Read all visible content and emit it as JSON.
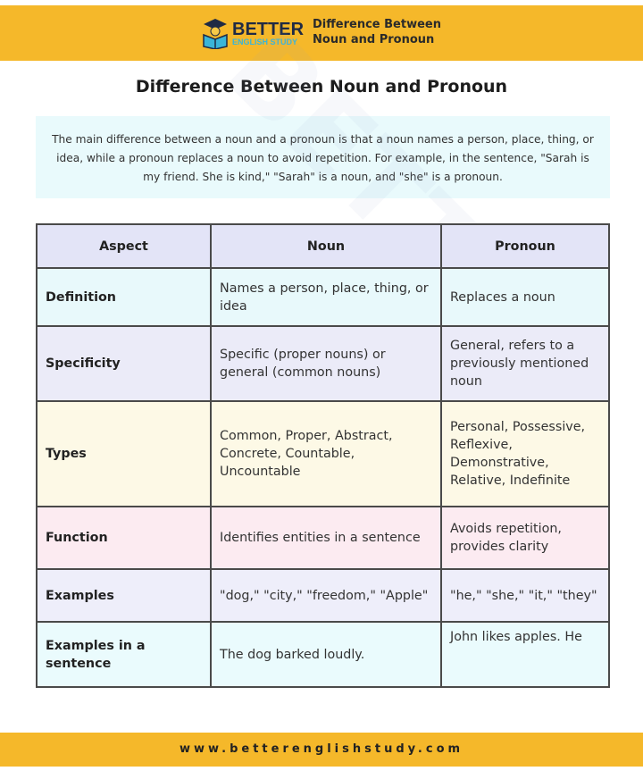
{
  "header": {
    "brand_top": "BETTER",
    "brand_bottom": "ENGLISH STUDY",
    "title_line1": "Difference Between",
    "title_line2": "Noun and Pronoun"
  },
  "title": "Difference Between Noun and Pronoun",
  "intro": "The main difference between a noun and a pronoun is that a noun names a person, place, thing, or idea, while a pronoun replaces a noun to avoid repetition. For example, in the sentence, \"Sarah is my friend. She is kind,\" \"Sarah\" is a noun, and \"she\" is a pronoun.",
  "table": {
    "headers": [
      "Aspect",
      "Noun",
      "Pronoun"
    ],
    "rows": [
      {
        "aspect": "Definition",
        "noun": "Names a person, place, thing, or idea",
        "pronoun": "Replaces a noun",
        "color": "#e8f9fb"
      },
      {
        "aspect": "Specificity",
        "noun": "Specific (proper nouns) or general (common nouns)",
        "pronoun": "General, refers to a previously mentioned noun",
        "color": "#ebebf8"
      },
      {
        "aspect": "Types",
        "noun": "Common, Proper, Abstract, Concrete, Countable, Uncountable",
        "pronoun": "Personal, Possessive, Reflexive, Demonstrative, Relative, Indefinite",
        "color": "#fdf9e6"
      },
      {
        "aspect": "Function",
        "noun": "Identifies entities in a sentence",
        "pronoun": "Avoids repetition, provides clarity",
        "color": "#fcebf1"
      },
      {
        "aspect": "Examples",
        "noun": "\"dog,\" \"city,\" \"freedom,\" \"Apple\"",
        "pronoun": "\"he,\" \"she,\" \"it,\" \"they\"",
        "color": "#eeeefa"
      },
      {
        "aspect": "Examples in a sentence",
        "noun": "The dog barked loudly.",
        "pronoun": "John likes apples. He",
        "color": "#eafbfd"
      }
    ]
  },
  "footer": "www.betterenglishstudy.com",
  "colors": {
    "accent": "#f5b82a"
  }
}
